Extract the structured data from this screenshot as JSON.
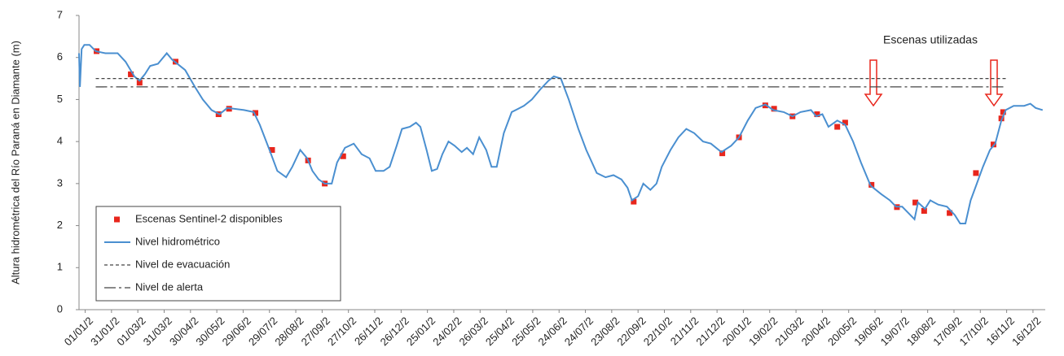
{
  "chart_data": {
    "type": "line",
    "y_label": "Altura hidrométrica del Río Paraná en Diamante (m)",
    "annotation": "Escenas utilizadas",
    "xlim": [
      -7,
      1094
    ],
    "ylim": [
      0,
      7
    ],
    "yticks": [
      0,
      1,
      2,
      3,
      4,
      5,
      6,
      7
    ],
    "xticks": [
      {
        "value": 0,
        "label": "01/01/2"
      },
      {
        "value": 30,
        "label": "31/01/2"
      },
      {
        "value": 60,
        "label": "01/03/2"
      },
      {
        "value": 90,
        "label": "31/03/2"
      },
      {
        "value": 120,
        "label": "30/04/2"
      },
      {
        "value": 150,
        "label": "30/05/2"
      },
      {
        "value": 180,
        "label": "29/06/2"
      },
      {
        "value": 210,
        "label": "29/07/2"
      },
      {
        "value": 240,
        "label": "28/08/2"
      },
      {
        "value": 270,
        "label": "27/09/2"
      },
      {
        "value": 300,
        "label": "27/10/2"
      },
      {
        "value": 330,
        "label": "26/11/2"
      },
      {
        "value": 360,
        "label": "26/12/2"
      },
      {
        "value": 390,
        "label": "25/01/2"
      },
      {
        "value": 420,
        "label": "24/02/2"
      },
      {
        "value": 450,
        "label": "26/03/2"
      },
      {
        "value": 480,
        "label": "25/04/2"
      },
      {
        "value": 510,
        "label": "25/05/2"
      },
      {
        "value": 540,
        "label": "24/06/2"
      },
      {
        "value": 570,
        "label": "24/07/2"
      },
      {
        "value": 600,
        "label": "23/08/2"
      },
      {
        "value": 630,
        "label": "22/09/2"
      },
      {
        "value": 660,
        "label": "22/10/2"
      },
      {
        "value": 690,
        "label": "21/11/2"
      },
      {
        "value": 720,
        "label": "21/12/2"
      },
      {
        "value": 750,
        "label": "20/01/2"
      },
      {
        "value": 780,
        "label": "19/02/2"
      },
      {
        "value": 810,
        "label": "21/03/2"
      },
      {
        "value": 840,
        "label": "20/04/2"
      },
      {
        "value": 870,
        "label": "20/05/2"
      },
      {
        "value": 900,
        "label": "19/06/2"
      },
      {
        "value": 930,
        "label": "19/07/2"
      },
      {
        "value": 960,
        "label": "18/08/2"
      },
      {
        "value": 990,
        "label": "17/09/2"
      },
      {
        "value": 1020,
        "label": "17/10/2"
      },
      {
        "value": 1050,
        "label": "16/11/2"
      },
      {
        "value": 1080,
        "label": "16/12/2"
      }
    ],
    "grid": false,
    "series": [
      {
        "name": "Escenas Sentinel-2 disponibles",
        "style": "marker",
        "color": "#e8261c",
        "x": [
          13,
          52,
          62,
          103,
          152,
          164,
          194,
          213,
          254,
          273,
          294,
          625,
          726,
          745,
          775,
          785,
          806,
          834,
          857,
          866,
          896,
          925,
          946,
          956,
          985,
          1015,
          1035,
          1044,
          1046
        ],
        "values": [
          6.15,
          5.6,
          5.4,
          5.9,
          4.65,
          4.78,
          4.68,
          3.8,
          3.55,
          3.0,
          3.65,
          2.57,
          3.72,
          4.1,
          4.86,
          4.78,
          4.6,
          4.65,
          4.35,
          4.45,
          2.97,
          2.44,
          2.55,
          2.35,
          2.3,
          3.25,
          3.93,
          4.55,
          4.7
        ]
      },
      {
        "name": "Nivel hidrométrico",
        "style": "line",
        "color": "#4a8fd0",
        "x": [
          -7,
          -6,
          -4,
          -1,
          5,
          12,
          23,
          37,
          46,
          56,
          62,
          68,
          74,
          83,
          93,
          99,
          114,
          125,
          134,
          144,
          153,
          162,
          181,
          192,
          199,
          210,
          219,
          229,
          236,
          245,
          253,
          259,
          266,
          273,
          281,
          287,
          296,
          306,
          315,
          324,
          331,
          340,
          347,
          355,
          361,
          370,
          377,
          382,
          389,
          395,
          401,
          407,
          414,
          421,
          429,
          435,
          442,
          449,
          457,
          463,
          469,
          477,
          486,
          500,
          509,
          519,
          528,
          534,
          542,
          551,
          562,
          571,
          583,
          593,
          602,
          611,
          618,
          623,
          630,
          636,
          644,
          651,
          657,
          667,
          676,
          685,
          694,
          704,
          713,
          725,
          736,
          745,
          755,
          764,
          775,
          784,
          796,
          806,
          815,
          827,
          833,
          840,
          847,
          857,
          866,
          875,
          884,
          895,
          907,
          917,
          924,
          931,
          938,
          945,
          949,
          957,
          963,
          972,
          982,
          991,
          997,
          1003,
          1009,
          1016,
          1023,
          1031,
          1037,
          1044,
          1049,
          1058,
          1070,
          1077,
          1083,
          1091
        ],
        "values": [
          6.1,
          5.3,
          6.2,
          6.3,
          6.3,
          6.15,
          6.1,
          6.1,
          5.9,
          5.55,
          5.45,
          5.6,
          5.8,
          5.85,
          6.1,
          5.95,
          5.7,
          5.3,
          5.0,
          4.75,
          4.65,
          4.8,
          4.75,
          4.7,
          4.4,
          3.8,
          3.3,
          3.15,
          3.4,
          3.8,
          3.6,
          3.3,
          3.1,
          3.0,
          3.0,
          3.5,
          3.85,
          3.95,
          3.7,
          3.6,
          3.3,
          3.3,
          3.4,
          3.9,
          4.3,
          4.35,
          4.45,
          4.35,
          3.8,
          3.3,
          3.35,
          3.7,
          4.0,
          3.9,
          3.75,
          3.85,
          3.7,
          4.1,
          3.8,
          3.4,
          3.4,
          4.2,
          4.7,
          4.85,
          5.0,
          5.25,
          5.45,
          5.55,
          5.5,
          5.0,
          4.3,
          3.8,
          3.25,
          3.15,
          3.2,
          3.1,
          2.9,
          2.6,
          2.7,
          3.0,
          2.85,
          3.0,
          3.4,
          3.8,
          4.1,
          4.3,
          4.2,
          4.0,
          3.95,
          3.75,
          3.9,
          4.1,
          4.5,
          4.8,
          4.88,
          4.75,
          4.7,
          4.6,
          4.7,
          4.75,
          4.6,
          4.65,
          4.35,
          4.5,
          4.4,
          4.0,
          3.5,
          2.95,
          2.75,
          2.6,
          2.45,
          2.45,
          2.3,
          2.15,
          2.55,
          2.4,
          2.6,
          2.5,
          2.45,
          2.25,
          2.05,
          2.05,
          2.6,
          3.0,
          3.4,
          3.8,
          3.95,
          4.5,
          4.75,
          4.85,
          4.85,
          4.9,
          4.8,
          4.75
        ]
      },
      {
        "name": "Nivel de evacuación",
        "style": "dashed",
        "color": "#444444",
        "x": [
          12,
          1049
        ],
        "values": [
          5.5,
          5.5
        ]
      },
      {
        "name": "Nivel de alerta",
        "style": "dashdot",
        "color": "#444444",
        "x": [
          12,
          1049
        ],
        "values": [
          5.3,
          5.3
        ]
      }
    ]
  }
}
